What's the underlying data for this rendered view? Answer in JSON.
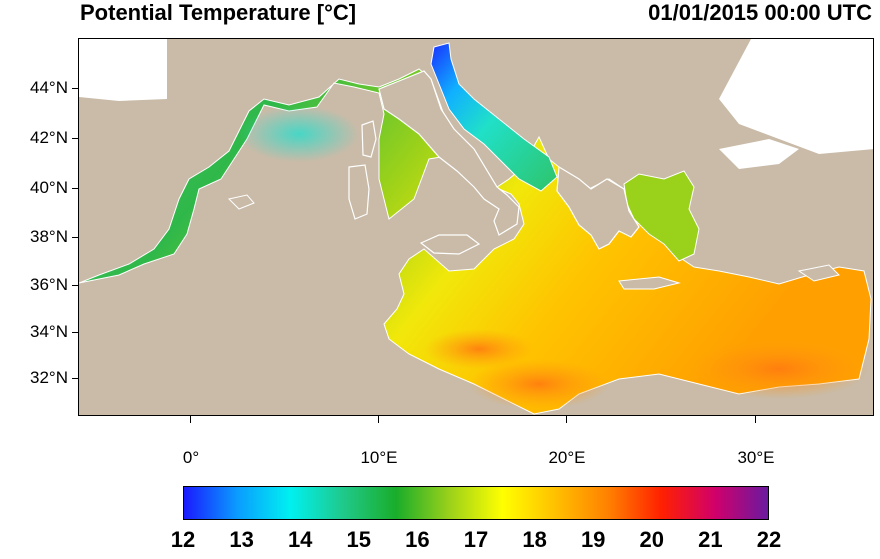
{
  "title": "Potential Temperature [°C]",
  "timestamp": "01/01/2015 00:00 UTC",
  "map": {
    "region": "Mediterranean Sea",
    "lat_ticks": [
      "44°N",
      "42°N",
      "40°N",
      "38°N",
      "36°N",
      "34°N",
      "32°N"
    ],
    "lon_ticks": [
      "0°",
      "10°E",
      "20°E",
      "30°E"
    ],
    "land_color": "#c9bba8",
    "outside_domain_color": "#ffffff"
  },
  "colorbar": {
    "labels": [
      "12",
      "13",
      "14",
      "15",
      "16",
      "17",
      "18",
      "19",
      "20",
      "21",
      "22"
    ],
    "min": 12,
    "max": 22,
    "colors": [
      "#1a1aff",
      "#0a9cff",
      "#00f0f0",
      "#1fc98a",
      "#1aad2a",
      "#9ad11a",
      "#ffff00",
      "#ffc000",
      "#ff8000",
      "#ff2000",
      "#d1006a",
      "#6a1aa0"
    ]
  }
}
